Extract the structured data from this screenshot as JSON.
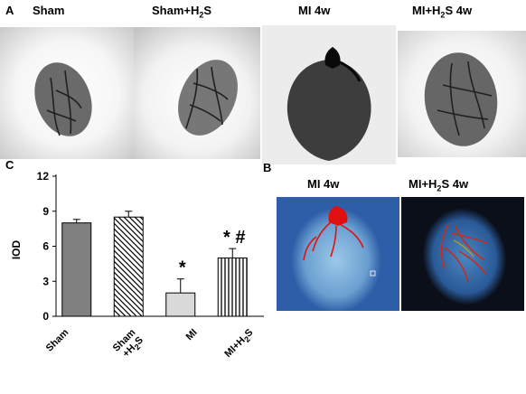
{
  "panel_a": {
    "letter": "A",
    "columns": [
      {
        "main": "Sham",
        "sub": "",
        "suffix": ""
      },
      {
        "main": "Sham+H",
        "sub": "2",
        "suffix": "S"
      },
      {
        "main": "MI 4w",
        "sub": "",
        "suffix": ""
      },
      {
        "main": "MI+H",
        "sub": "2",
        "suffix": "S 4w"
      }
    ]
  },
  "panel_b": {
    "letter": "B",
    "titles": [
      {
        "main": "MI 4w",
        "sub": "",
        "suffix": ""
      },
      {
        "main": "MI+H",
        "sub": "2",
        "suffix": "S 4w"
      }
    ]
  },
  "panel_c": {
    "letter": "C"
  },
  "chart_data": {
    "type": "bar",
    "categories": [
      "Sham",
      "Sham+H2S",
      "MI",
      "MI+H2S"
    ],
    "category_labels": [
      {
        "main": "Sham",
        "sub": "",
        "suffix": ""
      },
      {
        "main": "Sham",
        "line2_main": "+H",
        "sub": "2",
        "suffix": "S"
      },
      {
        "main": "MI",
        "sub": "",
        "suffix": ""
      },
      {
        "main": "MI+H",
        "sub": "2",
        "suffix": "S"
      }
    ],
    "values": [
      8.0,
      8.5,
      2.0,
      5.0
    ],
    "errors": [
      0.3,
      0.5,
      1.2,
      0.8
    ],
    "ylabel": "IOD",
    "xlabel": "",
    "ylim": [
      0,
      12
    ],
    "yticks": [
      0,
      3,
      6,
      9,
      12
    ],
    "ytick_labels": [
      "0",
      "3",
      "6",
      "9",
      "12"
    ],
    "annotations": [
      "",
      "",
      "*",
      "*  #"
    ],
    "bar_fills": [
      "solid-gray",
      "diagonal-hatch",
      "light-gray",
      "vertical-hatch"
    ],
    "grid": false
  },
  "colors": {
    "bar_dark": "#808080",
    "bar_light": "#d9d9d9",
    "angiogram_bg_left": "#2e5ea8",
    "angiogram_bg_right": "#0a0f1a",
    "vessel_red": "#e01010"
  }
}
